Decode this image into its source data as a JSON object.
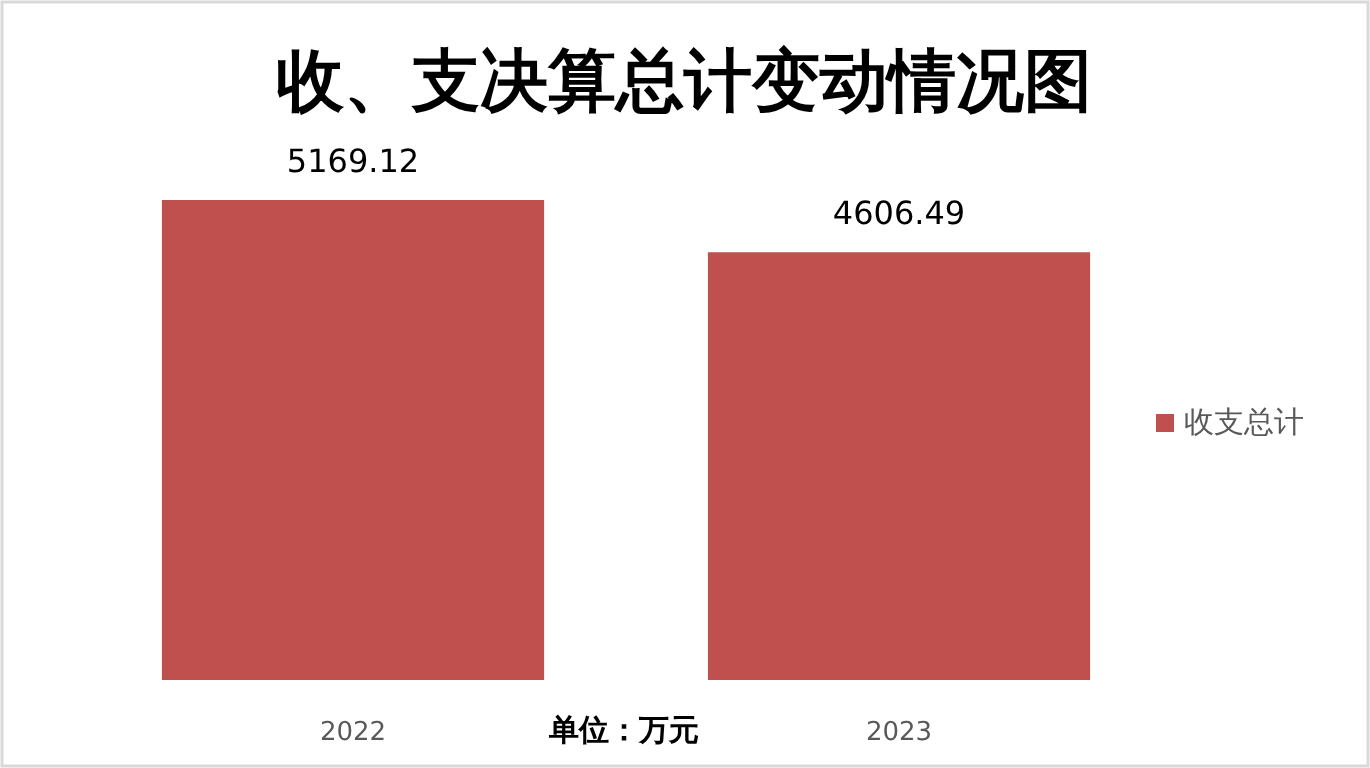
{
  "chart_data": {
    "type": "bar",
    "title": "收、支决算总计变动情况图",
    "categories": [
      "2022",
      "2023"
    ],
    "series": [
      {
        "name": "收支总计",
        "color": "#c0504d",
        "values": [
          5169.12,
          4606.49
        ]
      }
    ],
    "data_labels": true,
    "legend": "right",
    "tick_labels": "x",
    "annotations": [
      "单位：万元"
    ]
  }
}
